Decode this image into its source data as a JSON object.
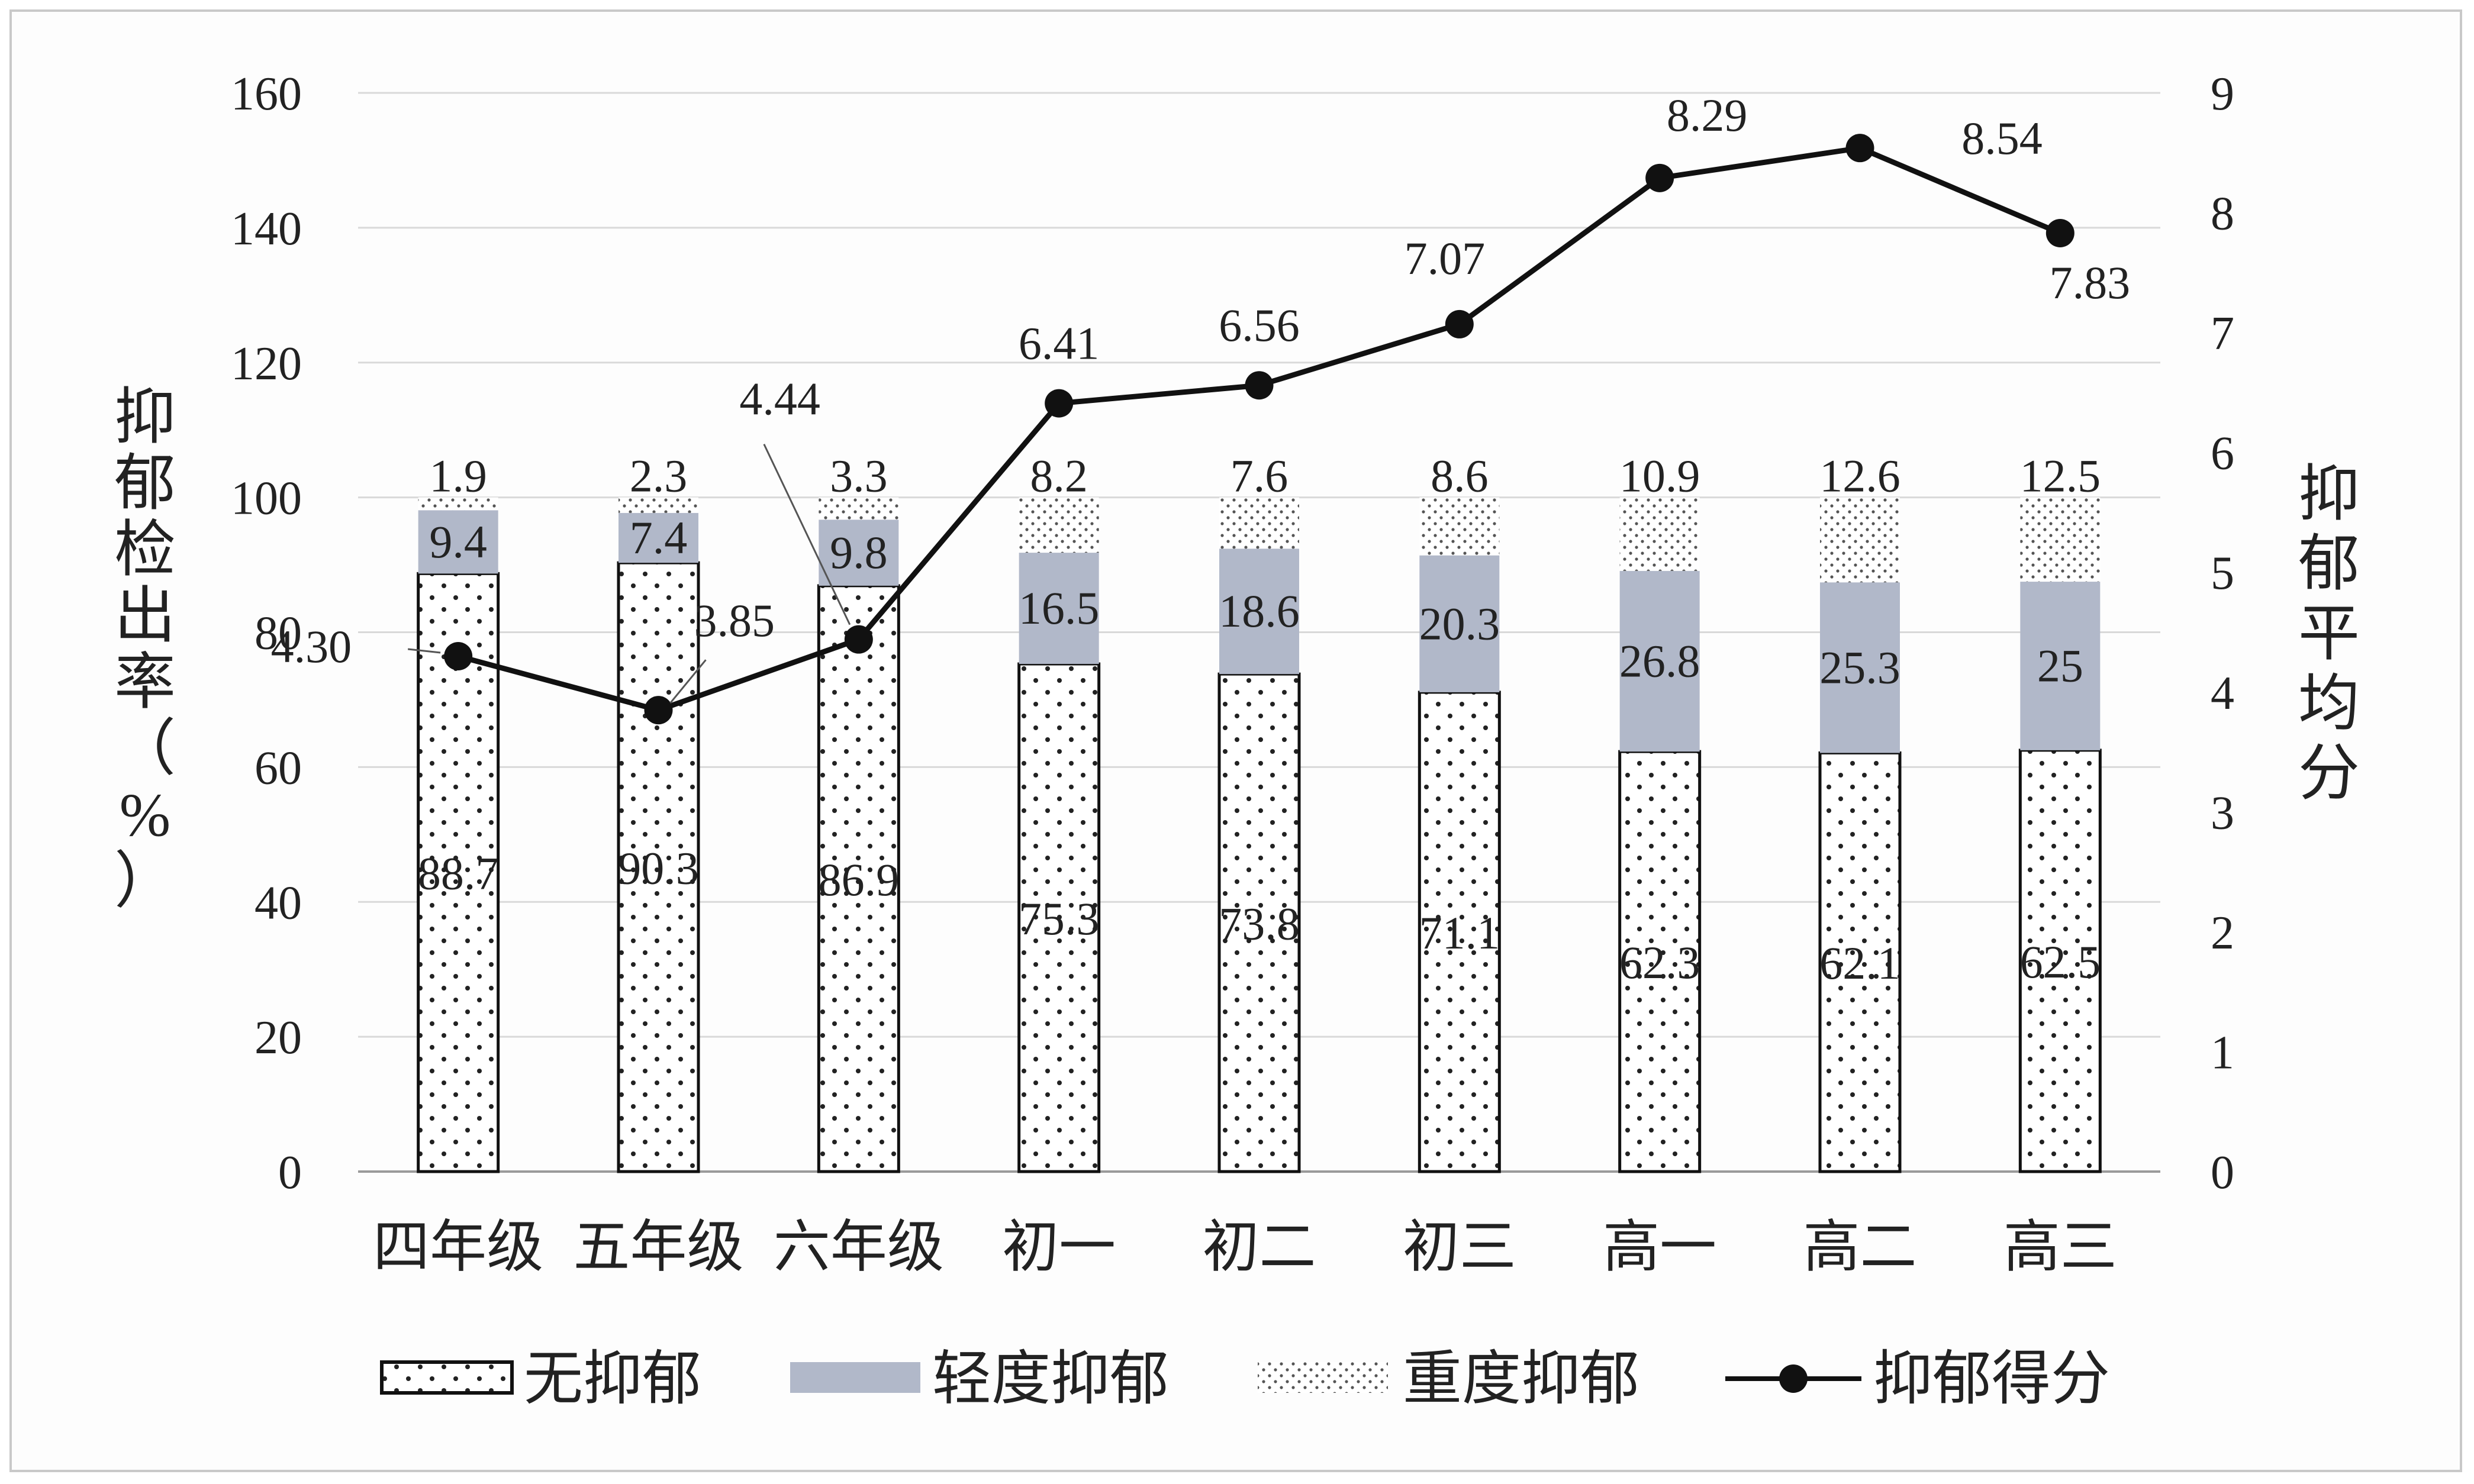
{
  "chart_data": {
    "type": "bar",
    "stacked": true,
    "categories": [
      "四年级",
      "五年级",
      "六年级",
      "初一",
      "初二",
      "初三",
      "高一",
      "高二",
      "高三"
    ],
    "series": [
      {
        "name": "无抑郁",
        "kind": "bar",
        "axis": "left",
        "values": [
          88.7,
          90.3,
          86.9,
          75.3,
          73.8,
          71.1,
          62.3,
          62.1,
          62.5
        ]
      },
      {
        "name": "轻度抑郁",
        "kind": "bar",
        "axis": "left",
        "values": [
          9.4,
          7.4,
          9.8,
          16.5,
          18.6,
          20.3,
          26.8,
          25.3,
          25
        ]
      },
      {
        "name": "重度抑郁",
        "kind": "bar",
        "axis": "left",
        "values": [
          1.9,
          2.3,
          3.3,
          8.2,
          7.6,
          8.6,
          10.9,
          12.6,
          12.5
        ]
      },
      {
        "name": "抑郁得分",
        "kind": "line",
        "axis": "right",
        "values": [
          4.3,
          3.85,
          4.44,
          6.41,
          6.56,
          7.07,
          8.29,
          8.54,
          7.83
        ]
      }
    ],
    "line_labels": [
      "4.30",
      "3.85",
      "4.44",
      "6.41",
      "6.56",
      "7.07",
      "8.29",
      "8.54",
      "7.83"
    ],
    "ylabel_left": "抑郁检出率（%）",
    "ylabel_right": "抑郁平均分",
    "ylim_left": [
      0,
      160
    ],
    "yticks_left": [
      0,
      20,
      40,
      60,
      80,
      100,
      120,
      140,
      160
    ],
    "ylim_right": [
      0,
      9
    ],
    "yticks_right": [
      0,
      1,
      2,
      3,
      4,
      5,
      6,
      7,
      8,
      9
    ],
    "grid": true,
    "legend_position": "bottom",
    "colors": {
      "none": "#ffffff",
      "mild": "#b1b8c9",
      "severe": "#ffffff",
      "line": "#111111",
      "grid": "#d9d9d9",
      "dots": "#222222"
    }
  }
}
